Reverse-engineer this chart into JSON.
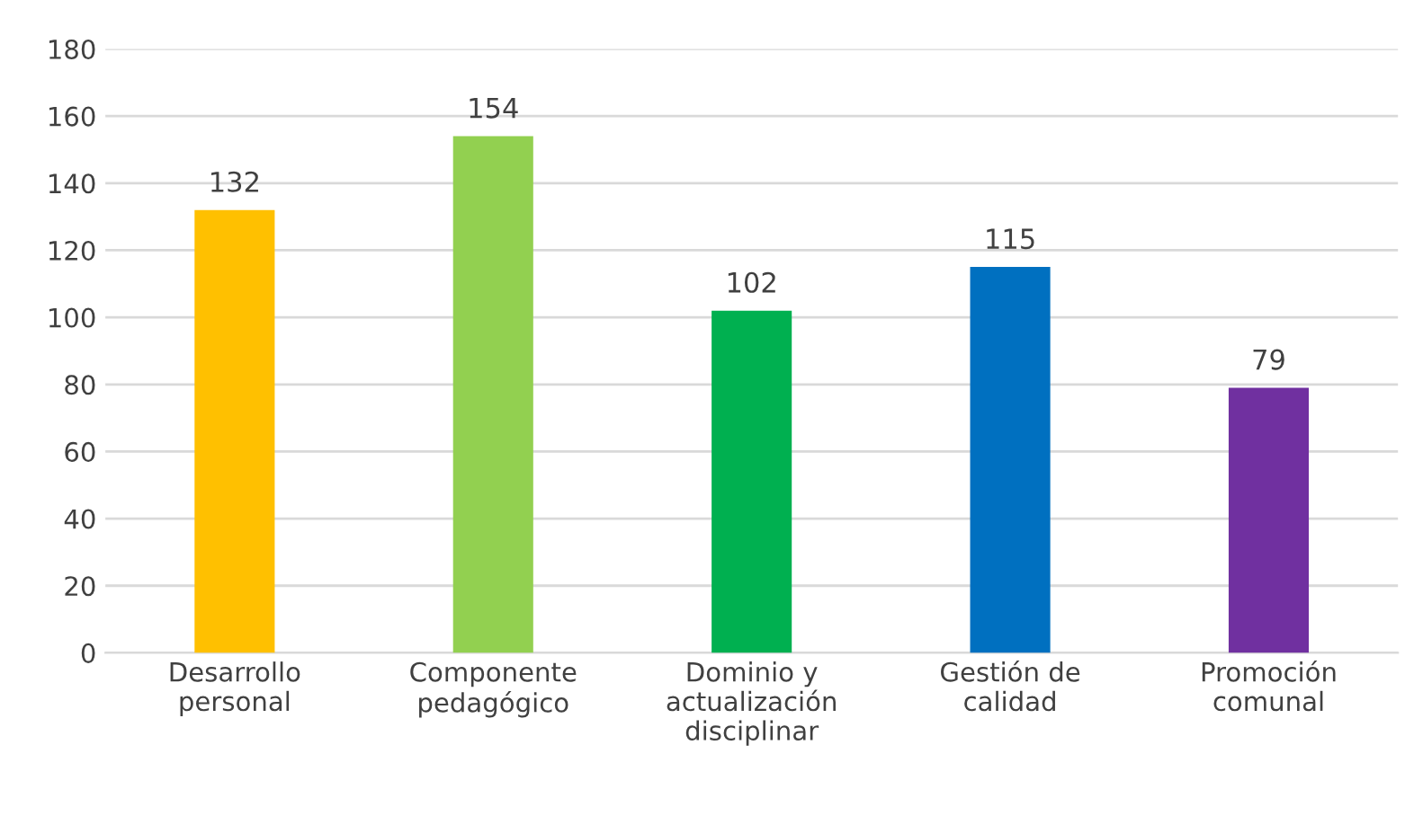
{
  "chart_data": {
    "type": "bar",
    "categories": [
      "Desarrollo\npersonal",
      "Componente\npedagógico",
      "Dominio y\nactualización\ndisciplinar",
      "Gestión de\ncalidad",
      "Promoción\ncomunal"
    ],
    "values": [
      132,
      154,
      102,
      115,
      79
    ],
    "colors": [
      "#ffc000",
      "#92d050",
      "#00b050",
      "#0070c0",
      "#7030a0"
    ],
    "ylim": [
      0,
      180
    ],
    "yticks": [
      0,
      20,
      40,
      60,
      80,
      100,
      120,
      140,
      160,
      180
    ],
    "grid": "y",
    "data_labels": true
  }
}
